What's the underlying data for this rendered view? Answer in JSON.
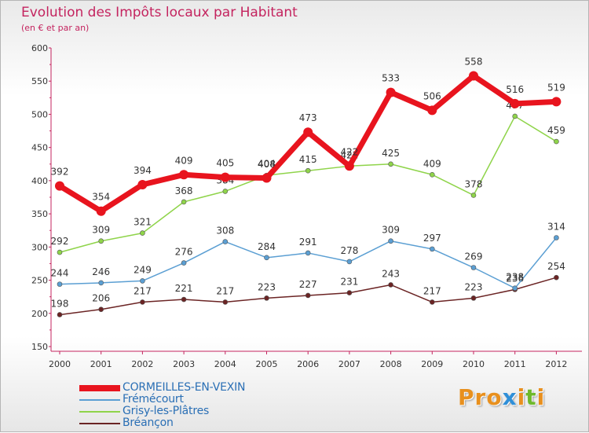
{
  "header": {
    "title": "Evolution des Impôts locaux par Habitant",
    "subtitle": "(en € et par an)"
  },
  "logo": {
    "text": "Proxiti",
    "letter_colors": [
      "#e8901e",
      "#e8901e",
      "#e8901e",
      "#2f8fd8",
      "#e8901e",
      "#6fb92c",
      "#e8901e"
    ]
  },
  "chart_data": {
    "type": "line",
    "title": "Evolution des Impôts locaux par Habitant",
    "subtitle": "(en € et par an)",
    "xlabel": "",
    "ylabel": "",
    "x": [
      "2000",
      "2001",
      "2002",
      "2003",
      "2004",
      "2005",
      "2006",
      "2007",
      "2008",
      "2009",
      "2010",
      "2011",
      "2012"
    ],
    "ylim": [
      150,
      600
    ],
    "yticks": [
      150,
      200,
      250,
      300,
      350,
      400,
      450,
      500,
      550,
      600
    ],
    "grid": false,
    "legend_position": "bottom-left",
    "series": [
      {
        "name": "CORMEILLES-EN-VEXIN",
        "color": "#e8141e",
        "legend_text_color": "#2a6fb5",
        "values": [
          392,
          354,
          394,
          409,
          405,
          404,
          473,
          422,
          533,
          506,
          558,
          516,
          519
        ]
      },
      {
        "name": "Frémécourt",
        "color": "#5b9fd3",
        "legend_text_color": "#2a6fb5",
        "values": [
          244,
          246,
          249,
          276,
          308,
          284,
          291,
          278,
          309,
          297,
          269,
          238,
          314
        ]
      },
      {
        "name": "Grisy-les-Plâtres",
        "color": "#8fd44a",
        "legend_text_color": "#2a6fb5",
        "values": [
          292,
          309,
          321,
          368,
          384,
          408,
          415,
          422,
          425,
          409,
          378,
          497,
          459
        ]
      },
      {
        "name": "Bréançon",
        "color": "#6b2424",
        "legend_text_color": "#2a6fb5",
        "values": [
          198,
          206,
          217,
          221,
          217,
          223,
          227,
          231,
          243,
          217,
          223,
          236,
          254
        ]
      }
    ]
  }
}
